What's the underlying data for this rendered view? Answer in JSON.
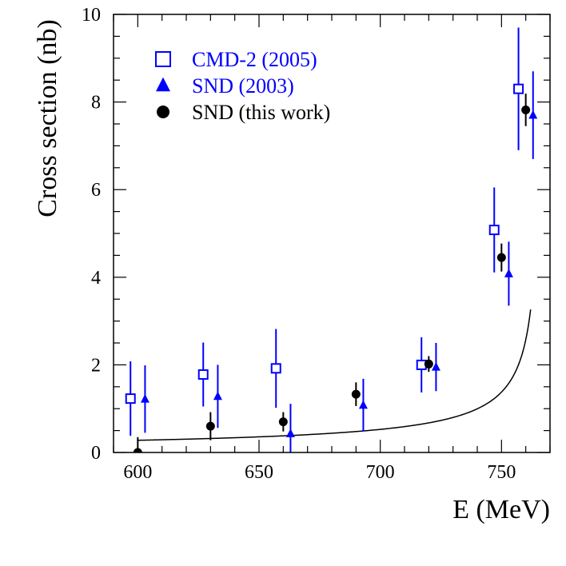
{
  "chart_data": {
    "type": "scatter",
    "xlabel": "E (MeV)",
    "ylabel": "Cross section (nb)",
    "xlim": [
      590,
      770
    ],
    "ylim": [
      0,
      10
    ],
    "x_ticks": [
      600,
      650,
      700,
      750
    ],
    "y_ticks": [
      0,
      2,
      4,
      6,
      8,
      10
    ],
    "x_tick_labels": [
      "600",
      "650",
      "700",
      "750"
    ],
    "y_tick_labels": [
      "0",
      "2",
      "4",
      "6",
      "8",
      "10"
    ],
    "legend_position": "top-left",
    "series": [
      {
        "name": "CMD-2 (2005)",
        "marker": "open-square",
        "color": "#0000ff",
        "points": [
          {
            "x": 597,
            "y": 1.23,
            "err": 0.85
          },
          {
            "x": 627,
            "y": 1.78,
            "err": 0.73
          },
          {
            "x": 657,
            "y": 1.92,
            "err": 0.9
          },
          {
            "x": 717,
            "y": 2.0,
            "err": 0.63
          },
          {
            "x": 747,
            "y": 5.08,
            "err": 0.97
          },
          {
            "x": 757,
            "y": 8.3,
            "err": 1.4
          }
        ]
      },
      {
        "name": "SND (2003)",
        "marker": "filled-triangle",
        "color": "#0000ff",
        "points": [
          {
            "x": 603,
            "y": 1.22,
            "err": 0.77
          },
          {
            "x": 633,
            "y": 1.28,
            "err": 0.72
          },
          {
            "x": 663,
            "y": 0.43,
            "err": 0.68
          },
          {
            "x": 693,
            "y": 1.08,
            "err": 0.6
          },
          {
            "x": 723,
            "y": 1.95,
            "err": 0.55
          },
          {
            "x": 753,
            "y": 4.08,
            "err": 0.73
          },
          {
            "x": 763,
            "y": 7.7,
            "err": 1.0
          }
        ]
      },
      {
        "name": "SND (this work)",
        "marker": "filled-circle",
        "color": "#000000",
        "points": [
          {
            "x": 600,
            "y": 0.0,
            "err": 0.35
          },
          {
            "x": 630,
            "y": 0.6,
            "err": 0.32
          },
          {
            "x": 660,
            "y": 0.7,
            "err": 0.22
          },
          {
            "x": 690,
            "y": 1.33,
            "err": 0.27
          },
          {
            "x": 720,
            "y": 2.02,
            "err": 0.18
          },
          {
            "x": 750,
            "y": 4.45,
            "err": 0.32
          },
          {
            "x": 760,
            "y": 7.82,
            "err": 0.37
          }
        ]
      }
    ],
    "fit_curve": {
      "name": "fit",
      "color": "#000000",
      "x_range": [
        600,
        762
      ],
      "model": "a + b/(c - x)^p",
      "params": {
        "a": 0.0,
        "b": 10.0,
        "c": 766.95,
        "p": 0.7
      }
    }
  }
}
